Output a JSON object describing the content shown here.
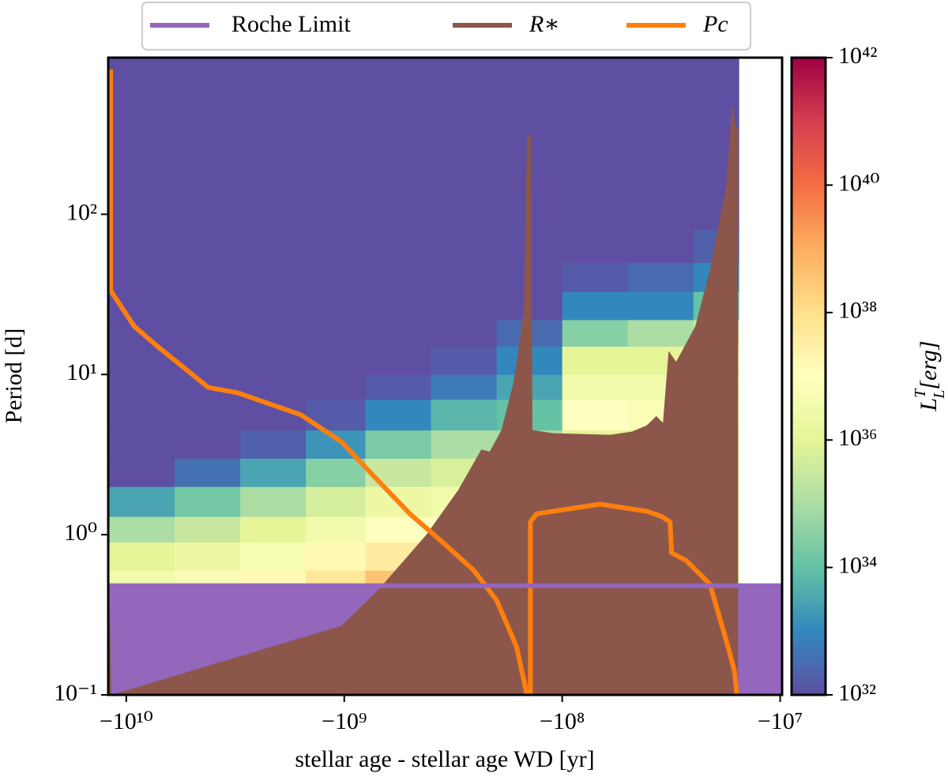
{
  "chart_data": {
    "type": "composite",
    "xlabel": "stellar age - stellar age WD [yr]",
    "ylabel": "Period [d]",
    "colorbar_label": {
      "base": "L",
      "sup": "T",
      "sub": "L",
      "unit": "[erg]"
    },
    "xscale": "neglog",
    "yscale": "log",
    "zscale": "log",
    "xlim": [
      -12100000000.0,
      -9800000.0
    ],
    "ylim": [
      0.1,
      950
    ],
    "zlim": [
      1e+32,
      1e+42
    ],
    "xticks": [
      {
        "value": -10000000000.0,
        "label": "−10¹⁰"
      },
      {
        "value": -1000000000.0,
        "label": "−10⁹"
      },
      {
        "value": -100000000.0,
        "label": "−10⁸"
      },
      {
        "value": -10000000.0,
        "label": "−10⁷"
      }
    ],
    "yticks": [
      {
        "value": 0.1,
        "label": "10⁻¹"
      },
      {
        "value": 1,
        "label": "10⁰"
      },
      {
        "value": 10,
        "label": "10¹"
      },
      {
        "value": 100,
        "label": "10²"
      }
    ],
    "zticks": [
      {
        "value": 1e+32,
        "label": "10³²"
      },
      {
        "value": 1e+34,
        "label": "10³⁴"
      },
      {
        "value": 1e+36,
        "label": "10³⁶"
      },
      {
        "value": 1e+38,
        "label": "10³⁸"
      },
      {
        "value": 1e+40,
        "label": "10⁴⁰"
      },
      {
        "value": 1e+42,
        "label": "10⁴²"
      }
    ],
    "colormap": [
      "#5e4fa2",
      "#3288bd",
      "#66c2a5",
      "#abdda4",
      "#e6f598",
      "#ffffbf",
      "#fee08b",
      "#fdae61",
      "#f46d43",
      "#d53e4f",
      "#9e0142"
    ],
    "legend": "top-outside",
    "heatmap": {
      "type": "heatmap",
      "x_edges": [
        -12100000000.0,
        -6000000000.0,
        -3000000000.0,
        -1500000000.0,
        -800000000.0,
        -400000000.0,
        -200000000.0,
        -100000000.0,
        -50000000.0,
        -25000000.0,
        -15500000.0
      ],
      "y_edges": [
        0.4,
        0.6,
        0.9,
        1.3,
        2,
        3,
        4.5,
        7,
        10,
        15,
        22,
        33,
        50,
        80,
        950
      ],
      "values": [
        [
          3e+36,
          6e+36,
          1.6e+37,
          6e+37,
          4e+38,
          1e+38,
          1e+36,
          1e+36,
          1e+36,
          1e+36
        ],
        [
          1e+36,
          2e+36,
          5e+36,
          1.6e+37,
          4e+37,
          3e+37,
          1e+36,
          1e+36,
          1e+36,
          1e+36
        ],
        [
          1e+35,
          3e+35,
          1e+36,
          3e+36,
          1e+37,
          1e+37,
          1e+36,
          1e+36,
          1e+36,
          1e+36
        ],
        [
          3e+33,
          1.6e+34,
          1e+35,
          5e+35,
          2e+36,
          3e+36,
          1e+36,
          1e+36,
          1e+36,
          1e+36
        ],
        [
          1e+32,
          4e+32,
          3e+33,
          3e+34,
          3e+35,
          6e+35,
          3e+35,
          1e+36,
          1e+36,
          1e+36
        ],
        [
          1e+32,
          1e+32,
          2e+32,
          1.6e+33,
          2e+34,
          1e+35,
          1e+35,
          1e+36,
          1e+36,
          1e+36
        ],
        [
          1e+32,
          1e+32,
          1e+32,
          1.6e+32,
          1e+33,
          6e+33,
          1e+34,
          1e+37,
          6e+36,
          3e+36
        ],
        [
          1e+32,
          1e+32,
          1e+32,
          1e+32,
          1.6e+32,
          6e+32,
          3e+33,
          3e+36,
          3e+36,
          2e+36
        ],
        [
          1e+32,
          1e+32,
          1e+32,
          1e+32,
          1e+32,
          1.6e+32,
          1e+33,
          1e+36,
          1e+36,
          1e+36
        ],
        [
          1e+32,
          1e+32,
          1e+32,
          1e+32,
          1e+32,
          1e+32,
          3e+32,
          3e+34,
          1e+35,
          3e+35
        ],
        [
          1e+32,
          1e+32,
          1e+32,
          1e+32,
          1e+32,
          1e+32,
          1e+32,
          1e+33,
          1e+33,
          1e+34
        ],
        [
          1e+32,
          1e+32,
          1e+32,
          1e+32,
          1e+32,
          1e+32,
          1e+32,
          1.6e+32,
          3e+32,
          1e+33
        ],
        [
          1e+32,
          1e+32,
          1e+32,
          1e+32,
          1e+32,
          1e+32,
          1e+32,
          1e+32,
          1e+32,
          2e+32
        ],
        [
          1e+32,
          1e+32,
          1e+32,
          1e+32,
          1e+32,
          1e+32,
          1e+32,
          1e+32,
          1e+32,
          1e+32
        ]
      ]
    },
    "series": [
      {
        "name": "Roche Limit",
        "type": "area",
        "color": "#9467bd",
        "outline": true,
        "x": [
          -12100000000.0,
          -9800000.0
        ],
        "values": [
          0.48,
          0.48
        ]
      },
      {
        "name": "R∗",
        "type": "area",
        "color": "#8c564b",
        "x": [
          -12100000000.0,
          -11900000000.0,
          -11700000000.0,
          -1030000000.0,
          -690000000.0,
          -420000000.0,
          -300000000.0,
          -235000000.0,
          -215000000.0,
          -190000000.0,
          -167000000.0,
          -150000000.0,
          -145000000.0,
          -139000000.0,
          -137000000.0,
          -110000000.0,
          -60000000.0,
          -48000000.0,
          -41000000.0,
          -37000000.0,
          -34500000.0,
          -32500000.0,
          -30000000.0,
          -24500000.0,
          -21000000.0,
          -17700000.0,
          -16600000.0,
          -16000000.0,
          -15600000.0
        ],
        "values": [
          0.1,
          0.35,
          0.1,
          0.27,
          0.46,
          1.0,
          1.9,
          3.4,
          3.3,
          4.5,
          9,
          25,
          320,
          300,
          4.5,
          4.3,
          4.2,
          4.4,
          4.8,
          5.5,
          5.0,
          14,
          12,
          20,
          45,
          150,
          480,
          350,
          350
        ]
      },
      {
        "name": "Pc",
        "type": "line",
        "color": "#ff7f0e",
        "x": [
          -11800000000.0,
          -11800000000.0,
          -9200000000.0,
          -7200000000.0,
          -4200000000.0,
          -3100000000.0,
          -1580000000.0,
          -1030000000.0,
          -750000000.0,
          -500000000.0,
          -355000000.0,
          -255000000.0,
          -200000000.0,
          -162000000.0,
          -145000000.0,
          -140000000.0,
          -140000000.0,
          -131000000.0,
          -110000000.0,
          -67000000.0,
          -41000000.0,
          -35000000.0,
          -32000000.0,
          -31500000.0,
          -27000000.0,
          -21000000.0,
          -18200000.0,
          -17000000.0,
          -16200000.0,
          -15800000.0
        ],
        "values": [
          800,
          33.4,
          20,
          15,
          8.3,
          7.7,
          5.6,
          3.8,
          2.4,
          1.35,
          0.9,
          0.6,
          0.39,
          0.2,
          0.1,
          0.1,
          1.2,
          1.35,
          1.4,
          1.55,
          1.4,
          1.3,
          1.2,
          0.77,
          0.69,
          0.49,
          0.25,
          0.18,
          0.14,
          0.1
        ]
      }
    ]
  }
}
